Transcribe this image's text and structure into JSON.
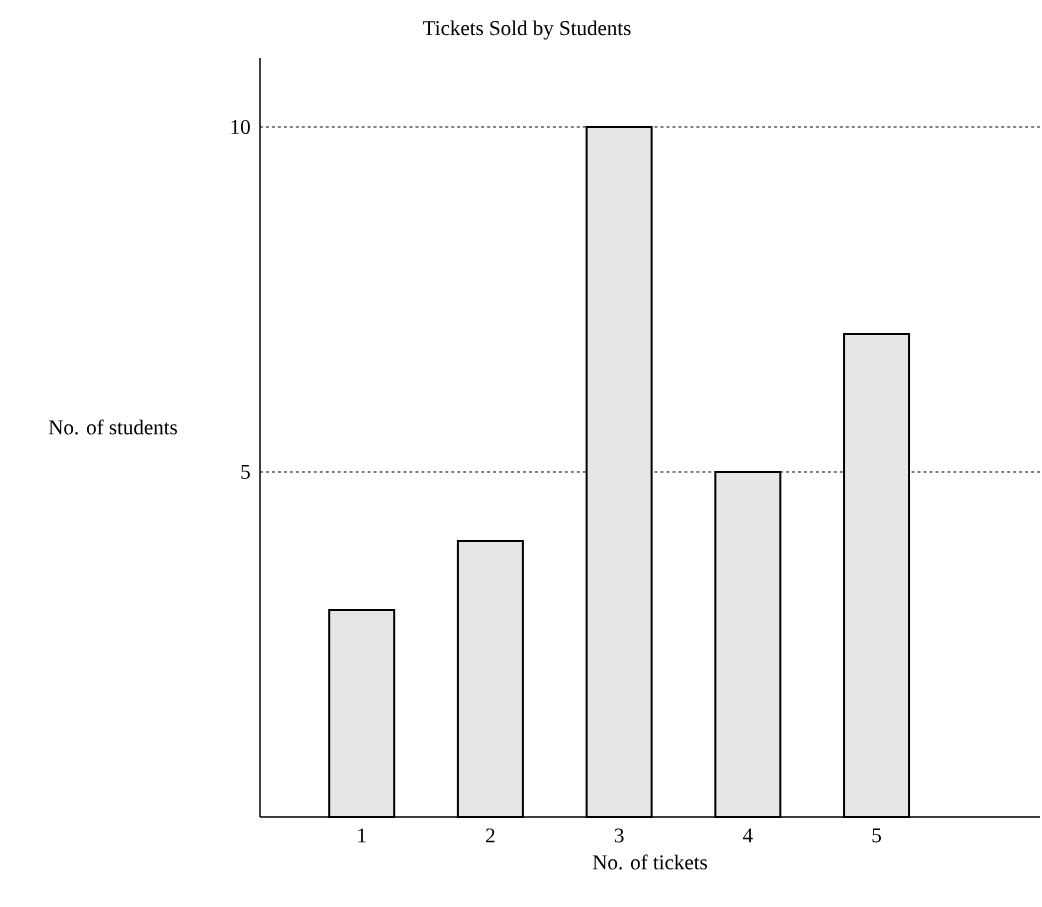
{
  "chart_data": {
    "type": "bar",
    "title": "Tickets Sold by Students",
    "xlabel": "No. of tickets",
    "ylabel": "No. of students",
    "categories": [
      "1",
      "2",
      "3",
      "4",
      "5"
    ],
    "values": [
      3,
      4,
      10,
      5,
      7
    ],
    "color": "#e6e6e6",
    "ylim": [
      0,
      11
    ],
    "yticks": [
      5,
      10
    ],
    "grid": "y"
  }
}
